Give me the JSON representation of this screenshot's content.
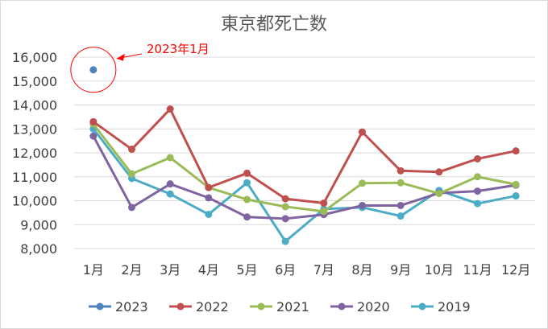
{
  "chart_data": {
    "type": "line",
    "title": "東京都死亡数",
    "categories": [
      "1月",
      "2月",
      "3月",
      "4月",
      "5月",
      "6月",
      "7月",
      "8月",
      "9月",
      "10月",
      "11月",
      "12月"
    ],
    "ylim": [
      8000,
      16000
    ],
    "yticks": [
      "8,000",
      "9,000",
      "10,000",
      "11,000",
      "12,000",
      "13,000",
      "14,000",
      "15,000",
      "16,000"
    ],
    "grid": true,
    "legend_position": "bottom",
    "series": [
      {
        "name": "2023",
        "color": "#4F81BD",
        "values": [
          15470,
          null,
          null,
          null,
          null,
          null,
          null,
          null,
          null,
          null,
          null,
          null
        ]
      },
      {
        "name": "2022",
        "color": "#C0504D",
        "values": [
          13300,
          12150,
          13830,
          10550,
          11150,
          10080,
          9900,
          12870,
          11250,
          11200,
          11750,
          12080
        ]
      },
      {
        "name": "2021",
        "color": "#9BBB59",
        "values": [
          13200,
          11120,
          11800,
          10550,
          10050,
          9750,
          9550,
          10730,
          10750,
          10300,
          11000,
          10680
        ]
      },
      {
        "name": "2020",
        "color": "#8064A2",
        "values": [
          12700,
          9720,
          10700,
          10120,
          9320,
          9250,
          9420,
          9800,
          9800,
          10320,
          10400,
          10650
        ]
      },
      {
        "name": "2019",
        "color": "#4BACC6",
        "values": [
          13000,
          10930,
          10280,
          9430,
          10750,
          8300,
          9650,
          9720,
          9360,
          10430,
          9880,
          10200
        ]
      }
    ],
    "annotation": {
      "text": "2023年1月",
      "color": "#FF0000"
    }
  }
}
